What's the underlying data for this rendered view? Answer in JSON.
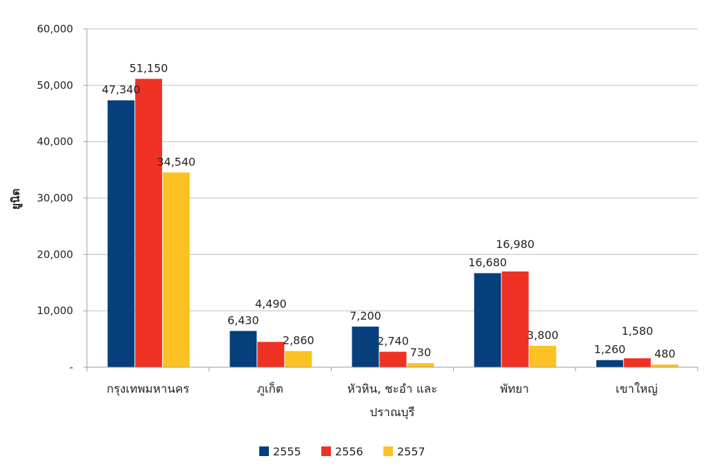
{
  "chart_data": {
    "type": "bar",
    "title": "",
    "xlabel": "",
    "ylabel": "ยูนิต",
    "ylim": [
      0,
      60000
    ],
    "yticks": [
      {
        "value": 0,
        "label": "-"
      },
      {
        "value": 10000,
        "label": "10,000"
      },
      {
        "value": 20000,
        "label": "20,000"
      },
      {
        "value": 30000,
        "label": "30,000"
      },
      {
        "value": 40000,
        "label": "40,000"
      },
      {
        "value": 50000,
        "label": "50,000"
      },
      {
        "value": 60000,
        "label": "60,000"
      }
    ],
    "grid": true,
    "legend_position": "bottom-center",
    "categories": [
      [
        "กรุงเทพมหานคร"
      ],
      [
        "ภูเก็ต"
      ],
      [
        "หัวหิน, ชะอำ และ",
        "ปราณบุรี"
      ],
      [
        "พัทยา"
      ],
      [
        "เขาใหญ่"
      ]
    ],
    "series": [
      {
        "name": "2555",
        "color": "#063f7c",
        "values": [
          47340,
          6430,
          7200,
          16680,
          1260
        ],
        "labels": [
          "47,340",
          "6,430",
          "7,200",
          "16,680",
          "1,260"
        ]
      },
      {
        "name": "2556",
        "color": "#ef3124",
        "values": [
          51150,
          4490,
          2740,
          16980,
          1580
        ],
        "labels": [
          "51,150",
          "4,490",
          "2,740",
          "16,980",
          "1,580"
        ]
      },
      {
        "name": "2557",
        "color": "#fcc223",
        "values": [
          34540,
          2860,
          730,
          3800,
          480
        ],
        "labels": [
          "34,540",
          "2,860",
          "730",
          "3,800",
          "480"
        ]
      }
    ]
  }
}
